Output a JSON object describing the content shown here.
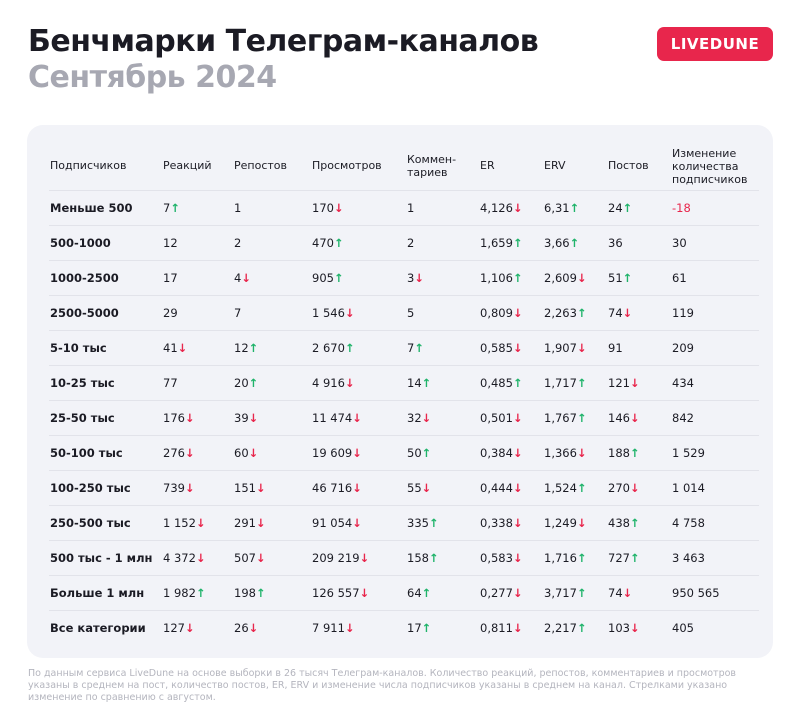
{
  "header": {
    "title": "Бенчмарки Телеграм-каналов",
    "subtitle": "Сентябрь 2024",
    "logo": "LIVEDUNE"
  },
  "table": {
    "columns": [
      "Подписчиков",
      "Реакций",
      "Репостов",
      "Просмотров",
      "Коммен-\nтариев",
      "ER",
      "ERV",
      "Постов",
      "Изменение количества подписчиков"
    ],
    "rows": [
      [
        "Меньше 500",
        "7↑",
        "1",
        "170↓",
        "1",
        "4,126↓",
        "6,31↑",
        "24↑",
        "-18"
      ],
      [
        "500-1000",
        "12",
        "2",
        "470↑",
        "2",
        "1,659↑",
        "3,66↑",
        "36",
        "30"
      ],
      [
        "1000-2500",
        "17",
        "4↓",
        "905↑",
        "3↓",
        "1,106↑",
        "2,609↓",
        "51↑",
        "61"
      ],
      [
        "2500-5000",
        "29",
        "7",
        "1 546↓",
        "5",
        "0,809↓",
        "2,263↑",
        "74↓",
        "119"
      ],
      [
        "5-10 тыс",
        "41↓",
        "12↑",
        "2 670↑",
        "7↑",
        "0,585↓",
        "1,907↓",
        "91",
        "209"
      ],
      [
        "10-25 тыс",
        "77",
        "20↑",
        "4 916↓",
        "14↑",
        "0,485↑",
        "1,717↑",
        "121↓",
        "434"
      ],
      [
        "25-50 тыс",
        "176↓",
        "39↓",
        "11 474↓",
        "32↓",
        "0,501↓",
        "1,767↑",
        "146↓",
        "842"
      ],
      [
        "50-100 тыс",
        "276↓",
        "60↓",
        "19 609↓",
        "50↑",
        "0,384↓",
        "1,366↓",
        "188↑",
        "1 529"
      ],
      [
        "100-250 тыс",
        "739↓",
        "151↓",
        "46 716↓",
        "55↓",
        "0,444↓",
        "1,524↑",
        "270↓",
        "1 014"
      ],
      [
        "250-500 тыс",
        "1 152↓",
        "291↓",
        "91 054↓",
        "335↑",
        "0,338↓",
        "1,249↓",
        "438↑",
        "4 758"
      ],
      [
        "500 тыс - 1 млн",
        "4 372↓",
        "507↓",
        "209 219↓",
        "158↑",
        "0,583↓",
        "1,716↑",
        "727↑",
        "3 463"
      ],
      [
        "Больше 1 млн",
        "1 982↑",
        "198↑",
        "126 557↓",
        "64↑",
        "0,277↓",
        "3,717↑",
        "74↓",
        "950 565"
      ],
      [
        "Все категории",
        "127↓",
        "26↓",
        "7 911↓",
        "17↑",
        "0,811↓",
        "2,217↑",
        "103↓",
        "405"
      ]
    ]
  },
  "footer": {
    "note": "По данным сервиса LiveDune на основе выборки в 26 тысяч Телеграм-каналов. Количество реакций, репостов, комментариев и просмотров указаны в среднем на пост, количество постов, ER, ERV и изменение числа подписчиков указаны в среднем на канал. Стрелками указано изменение по сравнению с августом."
  }
}
